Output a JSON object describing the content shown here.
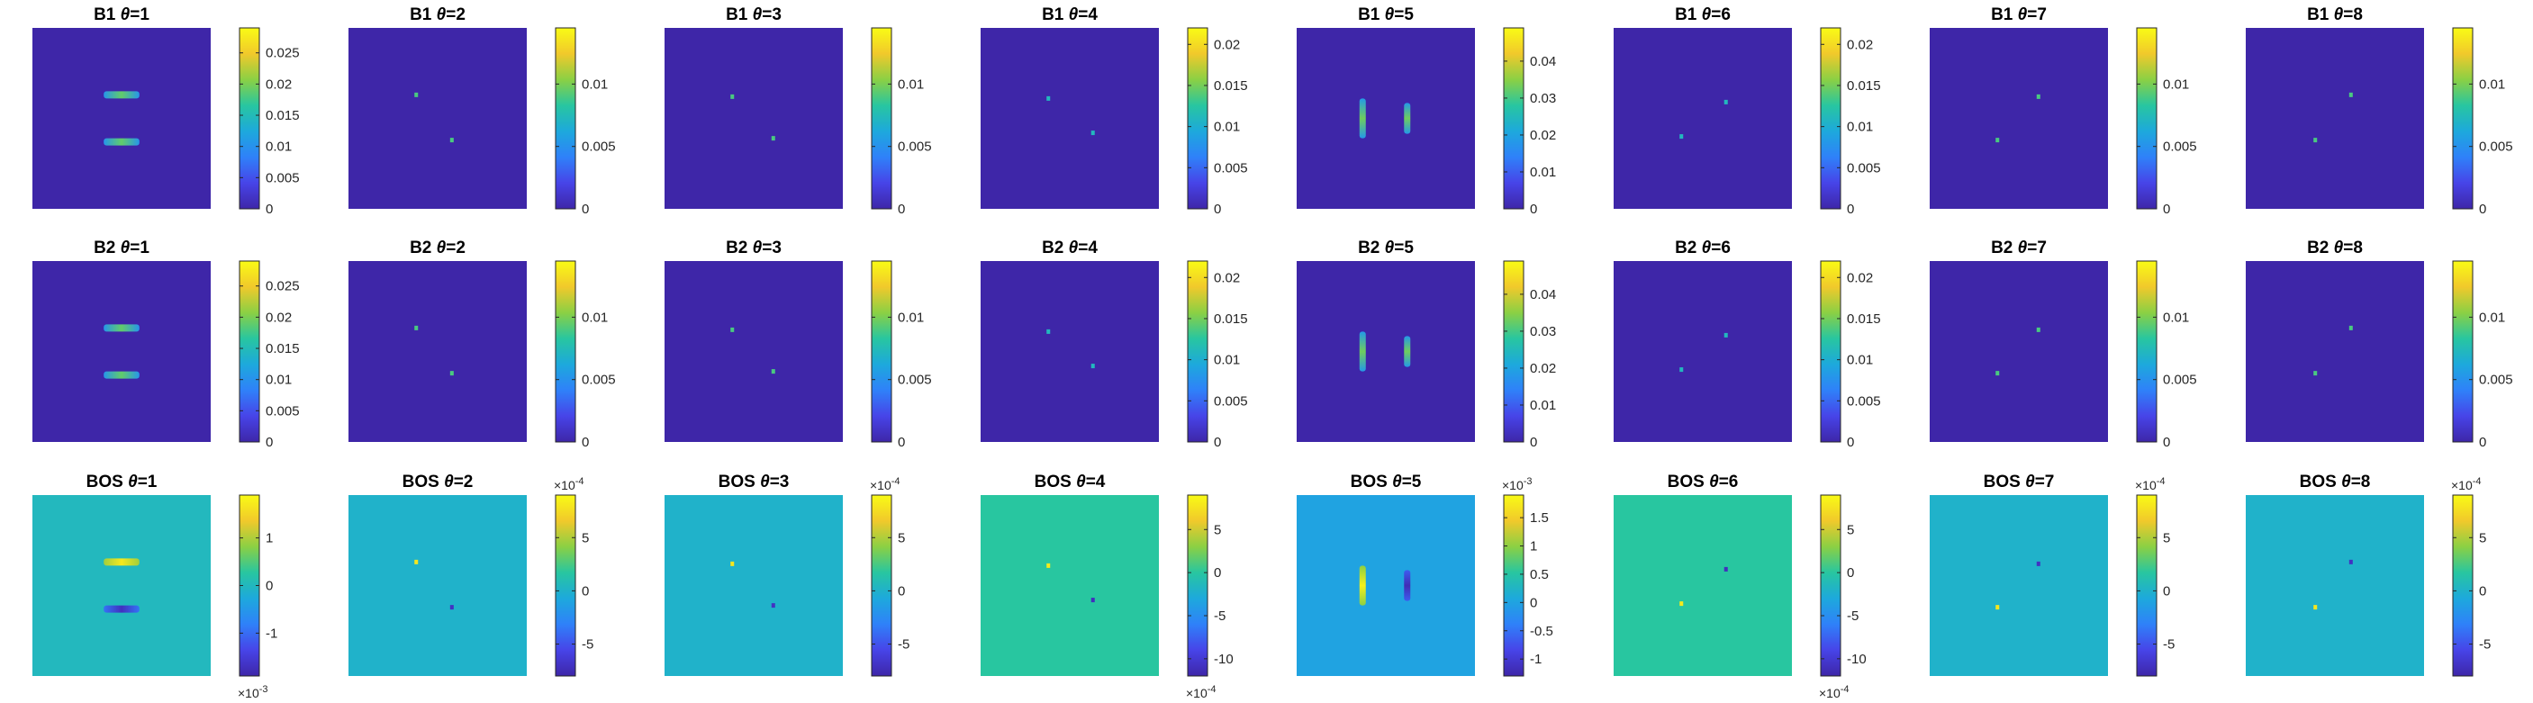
{
  "colors": {
    "parula_stops": [
      "#3e26a8",
      "#4744e8",
      "#2f81f9",
      "#1da9dc",
      "#28c6a0",
      "#8bd044",
      "#f1c92b",
      "#f9fb15"
    ]
  },
  "chart_data": [
    {
      "type": "heatmap",
      "group": "B1",
      "title_prefix": "B1 ",
      "title_theta": "θ",
      "title_suffix": "=1",
      "clim": [
        0,
        0.029
      ],
      "ticks": [
        "0",
        "0.005",
        "0.01",
        "0.015",
        "0.02",
        "0.025"
      ],
      "tick_values": [
        0,
        0.005,
        0.01,
        0.015,
        0.02,
        0.025
      ],
      "exponent": null,
      "exponent_position": null,
      "background_value": 0,
      "features": [
        {
          "shape": "hbar",
          "cx": 0.5,
          "cy": 0.37,
          "len": 0.2,
          "value": 0.019,
          "grad": true
        },
        {
          "shape": "hbar",
          "cx": 0.5,
          "cy": 0.63,
          "len": 0.2,
          "value": 0.019,
          "grad": true
        }
      ]
    },
    {
      "type": "heatmap",
      "group": "B1",
      "title_prefix": "B1 ",
      "title_theta": "θ",
      "title_suffix": "=2",
      "clim": [
        0,
        0.0145
      ],
      "ticks": [
        "0",
        "0.005",
        "0.01"
      ],
      "tick_values": [
        0,
        0.005,
        0.01
      ],
      "exponent": null,
      "exponent_position": null,
      "background_value": 0,
      "features": [
        {
          "shape": "dot",
          "cx": 0.38,
          "cy": 0.37,
          "value": 0.009
        },
        {
          "shape": "dot",
          "cx": 0.58,
          "cy": 0.62,
          "value": 0.009
        }
      ]
    },
    {
      "type": "heatmap",
      "group": "B1",
      "title_prefix": "B1 ",
      "title_theta": "θ",
      "title_suffix": "=3",
      "clim": [
        0,
        0.0145
      ],
      "ticks": [
        "0",
        "0.005",
        "0.01"
      ],
      "tick_values": [
        0,
        0.005,
        0.01
      ],
      "exponent": null,
      "exponent_position": null,
      "background_value": 0,
      "features": [
        {
          "shape": "dot",
          "cx": 0.38,
          "cy": 0.38,
          "value": 0.009
        },
        {
          "shape": "dot",
          "cx": 0.61,
          "cy": 0.61,
          "value": 0.009
        }
      ]
    },
    {
      "type": "heatmap",
      "group": "B1",
      "title_prefix": "B1 ",
      "title_theta": "θ",
      "title_suffix": "=4",
      "clim": [
        0,
        0.022
      ],
      "ticks": [
        "0",
        "0.005",
        "0.01",
        "0.015",
        "0.02"
      ],
      "tick_values": [
        0,
        0.005,
        0.01,
        0.015,
        0.02
      ],
      "exponent": null,
      "exponent_position": null,
      "background_value": 0,
      "features": [
        {
          "shape": "dot",
          "cx": 0.38,
          "cy": 0.39,
          "value": 0.011
        },
        {
          "shape": "dot",
          "cx": 0.63,
          "cy": 0.58,
          "value": 0.011
        }
      ]
    },
    {
      "type": "heatmap",
      "group": "B1",
      "title_prefix": "B1 ",
      "title_theta": "θ",
      "title_suffix": "=5",
      "clim": [
        0,
        0.049
      ],
      "ticks": [
        "0",
        "0.01",
        "0.02",
        "0.03",
        "0.04"
      ],
      "tick_values": [
        0,
        0.01,
        0.02,
        0.03,
        0.04
      ],
      "exponent": null,
      "exponent_position": null,
      "background_value": 0,
      "features": [
        {
          "shape": "vbar",
          "cx": 0.37,
          "cy": 0.5,
          "len": 0.22,
          "value": 0.033,
          "grad": true
        },
        {
          "shape": "vbar",
          "cx": 0.62,
          "cy": 0.5,
          "len": 0.17,
          "value": 0.033,
          "grad": true
        }
      ]
    },
    {
      "type": "heatmap",
      "group": "B1",
      "title_prefix": "B1 ",
      "title_theta": "θ",
      "title_suffix": "=6",
      "clim": [
        0,
        0.022
      ],
      "ticks": [
        "0",
        "0.005",
        "0.01",
        "0.015",
        "0.02"
      ],
      "tick_values": [
        0,
        0.005,
        0.01,
        0.015,
        0.02
      ],
      "exponent": null,
      "exponent_position": null,
      "background_value": 0,
      "features": [
        {
          "shape": "dot",
          "cx": 0.38,
          "cy": 0.6,
          "value": 0.011
        },
        {
          "shape": "dot",
          "cx": 0.63,
          "cy": 0.41,
          "value": 0.011
        }
      ]
    },
    {
      "type": "heatmap",
      "group": "B1",
      "title_prefix": "B1 ",
      "title_theta": "θ",
      "title_suffix": "=7",
      "clim": [
        0,
        0.0145
      ],
      "ticks": [
        "0",
        "0.005",
        "0.01"
      ],
      "tick_values": [
        0,
        0.005,
        0.01
      ],
      "exponent": null,
      "exponent_position": null,
      "background_value": 0,
      "features": [
        {
          "shape": "dot",
          "cx": 0.38,
          "cy": 0.62,
          "value": 0.009
        },
        {
          "shape": "dot",
          "cx": 0.61,
          "cy": 0.38,
          "value": 0.009
        }
      ]
    },
    {
      "type": "heatmap",
      "group": "B1",
      "title_prefix": "B1 ",
      "title_theta": "θ",
      "title_suffix": "=8",
      "clim": [
        0,
        0.0145
      ],
      "ticks": [
        "0",
        "0.005",
        "0.01"
      ],
      "tick_values": [
        0,
        0.005,
        0.01
      ],
      "exponent": null,
      "exponent_position": null,
      "background_value": 0,
      "features": [
        {
          "shape": "dot",
          "cx": 0.39,
          "cy": 0.62,
          "value": 0.009
        },
        {
          "shape": "dot",
          "cx": 0.59,
          "cy": 0.37,
          "value": 0.009
        }
      ]
    },
    {
      "type": "heatmap",
      "group": "B2",
      "title_prefix": "B2 ",
      "title_theta": "θ",
      "title_suffix": "=1",
      "clim": [
        0,
        0.029
      ],
      "ticks": [
        "0",
        "0.005",
        "0.01",
        "0.015",
        "0.02",
        "0.025"
      ],
      "tick_values": [
        0,
        0.005,
        0.01,
        0.015,
        0.02,
        0.025
      ],
      "exponent": null,
      "exponent_position": null,
      "background_value": 0,
      "features": [
        {
          "shape": "hbar",
          "cx": 0.5,
          "cy": 0.37,
          "len": 0.2,
          "value": 0.019,
          "grad": true
        },
        {
          "shape": "hbar",
          "cx": 0.5,
          "cy": 0.63,
          "len": 0.2,
          "value": 0.019,
          "grad": true
        }
      ]
    },
    {
      "type": "heatmap",
      "group": "B2",
      "title_prefix": "B2 ",
      "title_theta": "θ",
      "title_suffix": "=2",
      "clim": [
        0,
        0.0145
      ],
      "ticks": [
        "0",
        "0.005",
        "0.01"
      ],
      "tick_values": [
        0,
        0.005,
        0.01
      ],
      "exponent": null,
      "exponent_position": null,
      "background_value": 0,
      "features": [
        {
          "shape": "dot",
          "cx": 0.38,
          "cy": 0.37,
          "value": 0.009
        },
        {
          "shape": "dot",
          "cx": 0.58,
          "cy": 0.62,
          "value": 0.009
        }
      ]
    },
    {
      "type": "heatmap",
      "group": "B2",
      "title_prefix": "B2 ",
      "title_theta": "θ",
      "title_suffix": "=3",
      "clim": [
        0,
        0.0145
      ],
      "ticks": [
        "0",
        "0.005",
        "0.01"
      ],
      "tick_values": [
        0,
        0.005,
        0.01
      ],
      "exponent": null,
      "exponent_position": null,
      "background_value": 0,
      "features": [
        {
          "shape": "dot",
          "cx": 0.38,
          "cy": 0.38,
          "value": 0.009
        },
        {
          "shape": "dot",
          "cx": 0.61,
          "cy": 0.61,
          "value": 0.009
        }
      ]
    },
    {
      "type": "heatmap",
      "group": "B2",
      "title_prefix": "B2 ",
      "title_theta": "θ",
      "title_suffix": "=4",
      "clim": [
        0,
        0.022
      ],
      "ticks": [
        "0",
        "0.005",
        "0.01",
        "0.015",
        "0.02"
      ],
      "tick_values": [
        0,
        0.005,
        0.01,
        0.015,
        0.02
      ],
      "exponent": null,
      "exponent_position": null,
      "background_value": 0,
      "features": [
        {
          "shape": "dot",
          "cx": 0.38,
          "cy": 0.39,
          "value": 0.011
        },
        {
          "shape": "dot",
          "cx": 0.63,
          "cy": 0.58,
          "value": 0.011
        }
      ]
    },
    {
      "type": "heatmap",
      "group": "B2",
      "title_prefix": "B2 ",
      "title_theta": "θ",
      "title_suffix": "=5",
      "clim": [
        0,
        0.049
      ],
      "ticks": [
        "0",
        "0.01",
        "0.02",
        "0.03",
        "0.04"
      ],
      "tick_values": [
        0,
        0.01,
        0.02,
        0.03,
        0.04
      ],
      "exponent": null,
      "exponent_position": null,
      "background_value": 0,
      "features": [
        {
          "shape": "vbar",
          "cx": 0.37,
          "cy": 0.5,
          "len": 0.22,
          "value": 0.033,
          "grad": true
        },
        {
          "shape": "vbar",
          "cx": 0.62,
          "cy": 0.5,
          "len": 0.17,
          "value": 0.033,
          "grad": true
        }
      ]
    },
    {
      "type": "heatmap",
      "group": "B2",
      "title_prefix": "B2 ",
      "title_theta": "θ",
      "title_suffix": "=6",
      "clim": [
        0,
        0.022
      ],
      "ticks": [
        "0",
        "0.005",
        "0.01",
        "0.015",
        "0.02"
      ],
      "tick_values": [
        0,
        0.005,
        0.01,
        0.015,
        0.02
      ],
      "exponent": null,
      "exponent_position": null,
      "background_value": 0,
      "features": [
        {
          "shape": "dot",
          "cx": 0.38,
          "cy": 0.6,
          "value": 0.011
        },
        {
          "shape": "dot",
          "cx": 0.63,
          "cy": 0.41,
          "value": 0.011
        }
      ]
    },
    {
      "type": "heatmap",
      "group": "B2",
      "title_prefix": "B2 ",
      "title_theta": "θ",
      "title_suffix": "=7",
      "clim": [
        0,
        0.0145
      ],
      "ticks": [
        "0",
        "0.005",
        "0.01"
      ],
      "tick_values": [
        0,
        0.005,
        0.01
      ],
      "exponent": null,
      "exponent_position": null,
      "background_value": 0,
      "features": [
        {
          "shape": "dot",
          "cx": 0.38,
          "cy": 0.62,
          "value": 0.009
        },
        {
          "shape": "dot",
          "cx": 0.61,
          "cy": 0.38,
          "value": 0.009
        }
      ]
    },
    {
      "type": "heatmap",
      "group": "B2",
      "title_prefix": "B2 ",
      "title_theta": "θ",
      "title_suffix": "=8",
      "clim": [
        0,
        0.0145
      ],
      "ticks": [
        "0",
        "0.005",
        "0.01"
      ],
      "tick_values": [
        0,
        0.005,
        0.01
      ],
      "exponent": null,
      "exponent_position": null,
      "background_value": 0,
      "features": [
        {
          "shape": "dot",
          "cx": 0.39,
          "cy": 0.62,
          "value": 0.009
        },
        {
          "shape": "dot",
          "cx": 0.59,
          "cy": 0.37,
          "value": 0.009
        }
      ]
    },
    {
      "type": "heatmap",
      "group": "BOS",
      "title_prefix": "BOS ",
      "title_theta": "θ",
      "title_suffix": "=1",
      "clim": [
        -1.9,
        1.9
      ],
      "ticks": [
        "-1",
        "0",
        "1"
      ],
      "tick_values": [
        -1,
        0,
        1
      ],
      "exponent": "-3",
      "exponent_position": "bottom",
      "background_value": 0,
      "features": [
        {
          "shape": "hbar",
          "cx": 0.5,
          "cy": 0.37,
          "len": 0.2,
          "value": 1.7,
          "grad": true
        },
        {
          "shape": "hbar",
          "cx": 0.5,
          "cy": 0.63,
          "len": 0.2,
          "value": -1.7,
          "grad": true
        }
      ]
    },
    {
      "type": "heatmap",
      "group": "BOS",
      "title_prefix": "BOS ",
      "title_theta": "θ",
      "title_suffix": "=2",
      "clim": [
        -8,
        9
      ],
      "ticks": [
        "-5",
        "0",
        "5"
      ],
      "tick_values": [
        -5,
        0,
        5
      ],
      "exponent": "-4",
      "exponent_position": "top",
      "background_value": 0,
      "features": [
        {
          "shape": "dot",
          "cx": 0.38,
          "cy": 0.37,
          "value": 8
        },
        {
          "shape": "dot",
          "cx": 0.58,
          "cy": 0.62,
          "value": -7
        }
      ]
    },
    {
      "type": "heatmap",
      "group": "BOS",
      "title_prefix": "BOS ",
      "title_theta": "θ",
      "title_suffix": "=3",
      "clim": [
        -8,
        9
      ],
      "ticks": [
        "-5",
        "0",
        "5"
      ],
      "tick_values": [
        -5,
        0,
        5
      ],
      "exponent": "-4",
      "exponent_position": "top",
      "background_value": 0,
      "features": [
        {
          "shape": "dot",
          "cx": 0.38,
          "cy": 0.38,
          "value": 8
        },
        {
          "shape": "dot",
          "cx": 0.61,
          "cy": 0.61,
          "value": -7
        }
      ]
    },
    {
      "type": "heatmap",
      "group": "BOS",
      "title_prefix": "BOS ",
      "title_theta": "θ",
      "title_suffix": "=4",
      "clim": [
        -12,
        9
      ],
      "ticks": [
        "-10",
        "-5",
        "0",
        "5"
      ],
      "tick_values": [
        -10,
        -5,
        0,
        5
      ],
      "exponent": "-4",
      "exponent_position": "bottom",
      "background_value": 0,
      "features": [
        {
          "shape": "dot",
          "cx": 0.38,
          "cy": 0.39,
          "value": 8
        },
        {
          "shape": "dot",
          "cx": 0.63,
          "cy": 0.58,
          "value": -11
        }
      ]
    },
    {
      "type": "heatmap",
      "group": "BOS",
      "title_prefix": "BOS ",
      "title_theta": "θ",
      "title_suffix": "=5",
      "clim": [
        -1.3,
        1.9
      ],
      "ticks": [
        "-1",
        "-0.5",
        "0",
        "0.5",
        "1",
        "1.5"
      ],
      "tick_values": [
        -1,
        -0.5,
        0,
        0.5,
        1,
        1.5
      ],
      "exponent": "-3",
      "exponent_position": "top",
      "background_value": 0,
      "features": [
        {
          "shape": "vbar",
          "cx": 0.37,
          "cy": 0.5,
          "len": 0.22,
          "value": 1.8,
          "grad": true
        },
        {
          "shape": "vbar",
          "cx": 0.62,
          "cy": 0.5,
          "len": 0.17,
          "value": -1.2,
          "grad": true
        }
      ]
    },
    {
      "type": "heatmap",
      "group": "BOS",
      "title_prefix": "BOS ",
      "title_theta": "θ",
      "title_suffix": "=6",
      "clim": [
        -12,
        9
      ],
      "ticks": [
        "-10",
        "-5",
        "0",
        "5"
      ],
      "tick_values": [
        -10,
        -5,
        0,
        5
      ],
      "exponent": "-4",
      "exponent_position": "bottom",
      "background_value": 0,
      "features": [
        {
          "shape": "dot",
          "cx": 0.38,
          "cy": 0.6,
          "value": 8
        },
        {
          "shape": "dot",
          "cx": 0.63,
          "cy": 0.41,
          "value": -11
        }
      ]
    },
    {
      "type": "heatmap",
      "group": "BOS",
      "title_prefix": "BOS ",
      "title_theta": "θ",
      "title_suffix": "=7",
      "clim": [
        -8,
        9
      ],
      "ticks": [
        "-5",
        "0",
        "5"
      ],
      "tick_values": [
        -5,
        0,
        5
      ],
      "exponent": "-4",
      "exponent_position": "top",
      "background_value": 0,
      "features": [
        {
          "shape": "dot",
          "cx": 0.38,
          "cy": 0.62,
          "value": 8
        },
        {
          "shape": "dot",
          "cx": 0.61,
          "cy": 0.38,
          "value": -7
        }
      ]
    },
    {
      "type": "heatmap",
      "group": "BOS",
      "title_prefix": "BOS ",
      "title_theta": "θ",
      "title_suffix": "=8",
      "clim": [
        -8,
        9
      ],
      "ticks": [
        "-5",
        "0",
        "5"
      ],
      "tick_values": [
        -5,
        0,
        5
      ],
      "exponent": "-4",
      "exponent_position": "top",
      "background_value": 0,
      "features": [
        {
          "shape": "dot",
          "cx": 0.39,
          "cy": 0.62,
          "value": 8
        },
        {
          "shape": "dot",
          "cx": 0.59,
          "cy": 0.37,
          "value": -7
        }
      ]
    }
  ]
}
